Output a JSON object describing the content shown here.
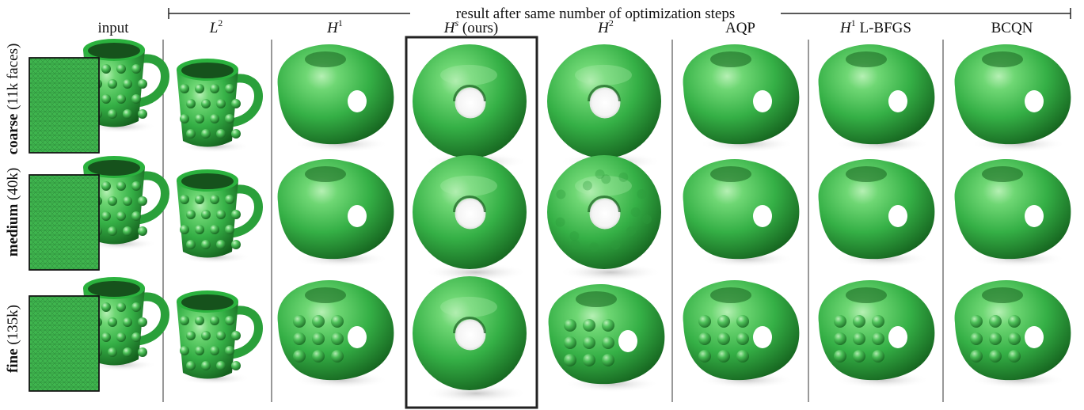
{
  "header": {
    "bracket_label": "result after same number of optimization steps"
  },
  "columns": [
    {
      "id": "input",
      "label": "input",
      "italic": false,
      "sup": ""
    },
    {
      "id": "l2",
      "label": "L",
      "italic": true,
      "sup": "2"
    },
    {
      "id": "h1",
      "label": "H",
      "italic": true,
      "sup": "1"
    },
    {
      "id": "hs",
      "label": "H",
      "italic": true,
      "sup": "s",
      "suffix": " (ours)"
    },
    {
      "id": "h2",
      "label": "H",
      "italic": true,
      "sup": "2"
    },
    {
      "id": "aqp",
      "label": "AQP",
      "italic": false,
      "sup": ""
    },
    {
      "id": "h1lbfgs",
      "label": "H",
      "italic": true,
      "sup": "1",
      "suffix": " L-BFGS"
    },
    {
      "id": "bcqn",
      "label": "BCQN",
      "italic": false,
      "sup": ""
    }
  ],
  "rows": [
    {
      "id": "coarse",
      "name": "coarse",
      "detail": "(11k faces)"
    },
    {
      "id": "medium",
      "name": "medium",
      "detail": "(40k)"
    },
    {
      "id": "fine",
      "name": "fine",
      "detail": "(135k)"
    }
  ],
  "shape_kinds": {
    "input": [
      "mug",
      "mug",
      "mug"
    ],
    "l2": [
      "bumpy-mug",
      "bumpy-mug",
      "bumpy-mug"
    ],
    "h1": [
      "blob",
      "blob-mug",
      "bumpy-blob-mug"
    ],
    "hs": [
      "torus",
      "torus",
      "torus"
    ],
    "h2": [
      "torus",
      "noisy-torus",
      "noisy-blob"
    ],
    "aqp": [
      "blob",
      "blob-mug",
      "bumpy-blob-mug"
    ],
    "h1lbfgs": [
      "blob",
      "blob-mug",
      "bumpy-blob-mug"
    ],
    "bcqn": [
      "blob",
      "blob-mug",
      "bumpy-blob-mug"
    ]
  },
  "colors": {
    "green_light": "#7ee07e",
    "green_mid": "#39b54a",
    "green_dark": "#1c6b25",
    "highlight_border": "#222222",
    "divider": "#444444"
  }
}
